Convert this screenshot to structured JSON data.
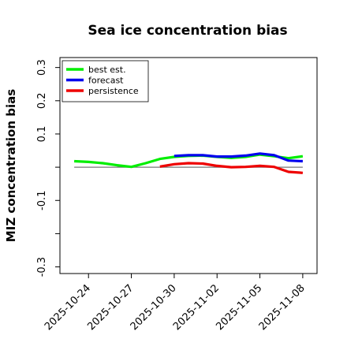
{
  "chart_data": {
    "type": "line",
    "title": "Sea ice concentration bias",
    "xlabel": "",
    "ylabel": "MIZ concentration bias",
    "xlim": [
      "2025-10-22",
      "2025-11-09"
    ],
    "ylim": [
      -0.32,
      0.33
    ],
    "yticks": [
      -0.3,
      -0.2,
      -0.1,
      0.0,
      0.1,
      0.2,
      0.3
    ],
    "ytick_labels": [
      "-0.3",
      "",
      "-0.1",
      "",
      "0.1",
      "0.2",
      "0.3"
    ],
    "xticks": [
      "2025-10-24",
      "2025-10-27",
      "2025-10-30",
      "2025-11-02",
      "2025-11-05",
      "2025-11-08"
    ],
    "xtick_labels": [
      "2025-10-24",
      "2025-10-27",
      "2025-10-30",
      "2025-11-02",
      "2025-11-05",
      "2025-11-08"
    ],
    "highlight_xtick": "2025-10-30",
    "highlight_color": "#2a8a2a",
    "zero_line": true,
    "grid": false,
    "legend_position": "top-left",
    "series": [
      {
        "name": "best est.",
        "color": "#00ee00",
        "x": [
          "2025-10-23",
          "2025-10-24",
          "2025-10-25",
          "2025-10-26",
          "2025-10-27",
          "2025-10-28",
          "2025-10-29",
          "2025-10-30",
          "2025-10-31",
          "2025-11-01",
          "2025-11-02",
          "2025-11-03",
          "2025-11-04",
          "2025-11-05",
          "2025-11-06",
          "2025-11-07",
          "2025-11-08"
        ],
        "y": [
          0.018,
          0.016,
          0.012,
          0.006,
          0.001,
          0.012,
          0.025,
          0.031,
          0.034,
          0.035,
          0.031,
          0.028,
          0.031,
          0.038,
          0.033,
          0.027,
          0.033
        ]
      },
      {
        "name": "forecast",
        "color": "#0000ee",
        "x": [
          "2025-10-30",
          "2025-10-31",
          "2025-11-01",
          "2025-11-02",
          "2025-11-03",
          "2025-11-04",
          "2025-11-05",
          "2025-11-06",
          "2025-11-07",
          "2025-11-08"
        ],
        "y": [
          0.034,
          0.036,
          0.036,
          0.032,
          0.032,
          0.035,
          0.041,
          0.036,
          0.02,
          0.018
        ]
      },
      {
        "name": "persistence",
        "color": "#ee0000",
        "x": [
          "2025-10-29",
          "2025-10-30",
          "2025-10-31",
          "2025-11-01",
          "2025-11-02",
          "2025-11-03",
          "2025-11-04",
          "2025-11-05",
          "2025-11-06",
          "2025-11-07",
          "2025-11-08"
        ],
        "y": [
          0.002,
          0.009,
          0.012,
          0.011,
          0.004,
          0.0,
          0.001,
          0.004,
          0.001,
          -0.014,
          -0.017
        ]
      }
    ]
  }
}
